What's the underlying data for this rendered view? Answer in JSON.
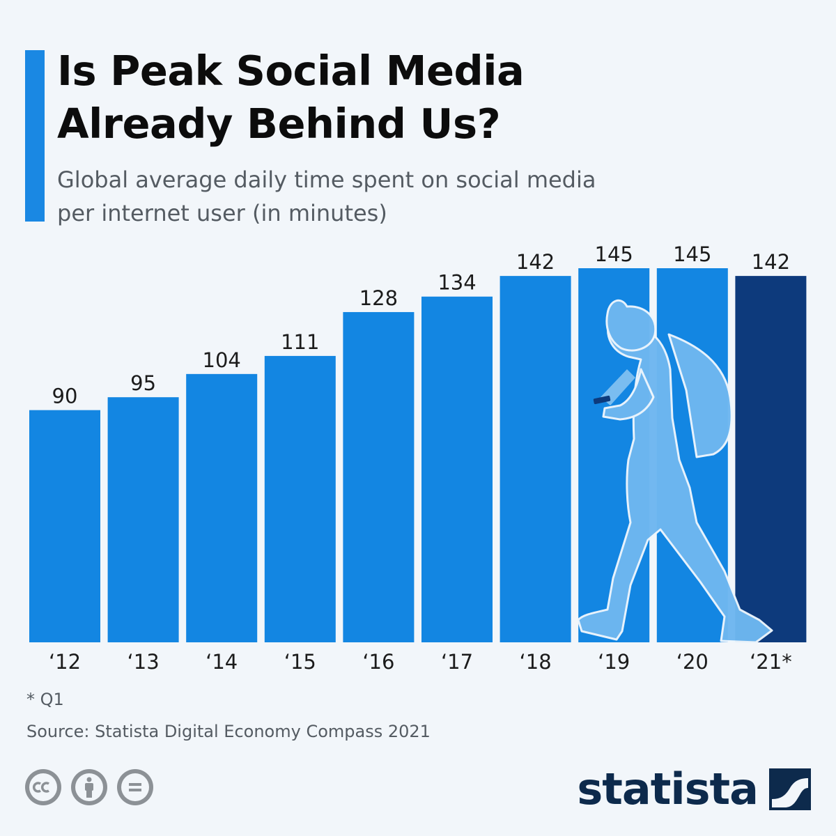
{
  "header": {
    "title": "Is Peak Social Media\nAlready Behind Us?",
    "subtitle": "Global average daily time spent on social media\nper internet user (in minutes)"
  },
  "chart_data": {
    "type": "bar",
    "title": "Is Peak Social Media Already Behind Us?",
    "subtitle": "Global average daily time spent on social media per internet user (in minutes)",
    "categories": [
      "‘12",
      "‘13",
      "‘14",
      "‘15",
      "‘16",
      "‘17",
      "‘18",
      "‘19",
      "‘20",
      "‘21*"
    ],
    "values": [
      90,
      95,
      104,
      111,
      128,
      134,
      142,
      145,
      145,
      142
    ],
    "colors": [
      "#1386e2",
      "#1386e2",
      "#1386e2",
      "#1386e2",
      "#1386e2",
      "#1386e2",
      "#1386e2",
      "#1386e2",
      "#1386e2",
      "#0d3a7c"
    ],
    "ylim": [
      0,
      145
    ],
    "grid": false,
    "legend": "none",
    "xlabel": "",
    "ylabel": ""
  },
  "footer": {
    "footnote": "* Q1",
    "source": "Source: Statista Digital Economy Compass 2021",
    "logo_text": "statista",
    "license_icons": [
      "cc-icon",
      "attribution-icon",
      "no-derivatives-icon"
    ]
  },
  "colors": {
    "accent": "#1a88e3",
    "bar": "#1386e2",
    "bar_highlight": "#0d3a7c",
    "silhouette": "#6eb7f0",
    "logo": "#0d2a4c",
    "background": "#f2f6fa"
  }
}
